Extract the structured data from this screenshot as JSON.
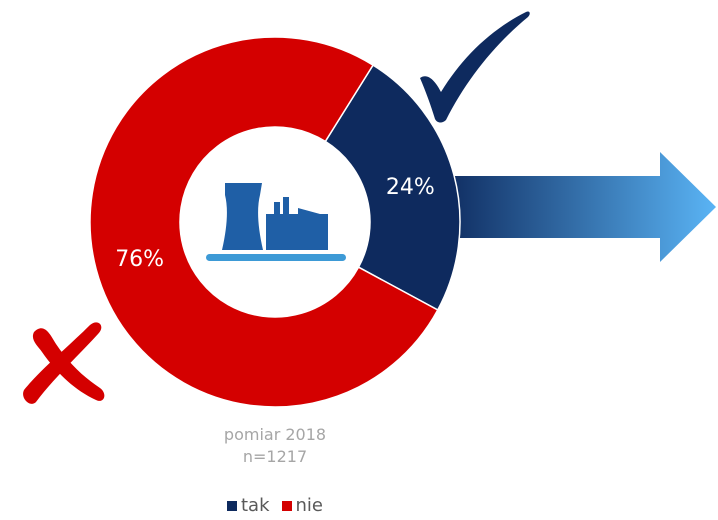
{
  "chart_data": {
    "type": "pie",
    "style": "donut",
    "categories": [
      "tak",
      "nie"
    ],
    "values": [
      24,
      76
    ],
    "labels": [
      "24%",
      "76%"
    ],
    "colors": [
      "#0e2a5e",
      "#d40000"
    ],
    "legend_position": "bottom"
  },
  "caption": {
    "line1": "pomiar 2018",
    "line2": "n=1217"
  },
  "icons": {
    "check": "checkmark-icon",
    "cross": "cross-icon",
    "arrow": "right-arrow-icon",
    "center": "power-plant-icon"
  },
  "colors": {
    "accent_arrow": "#5ab4f5",
    "icon_blue": "#1f5fa6",
    "icon_base": "#3d9ad6"
  }
}
